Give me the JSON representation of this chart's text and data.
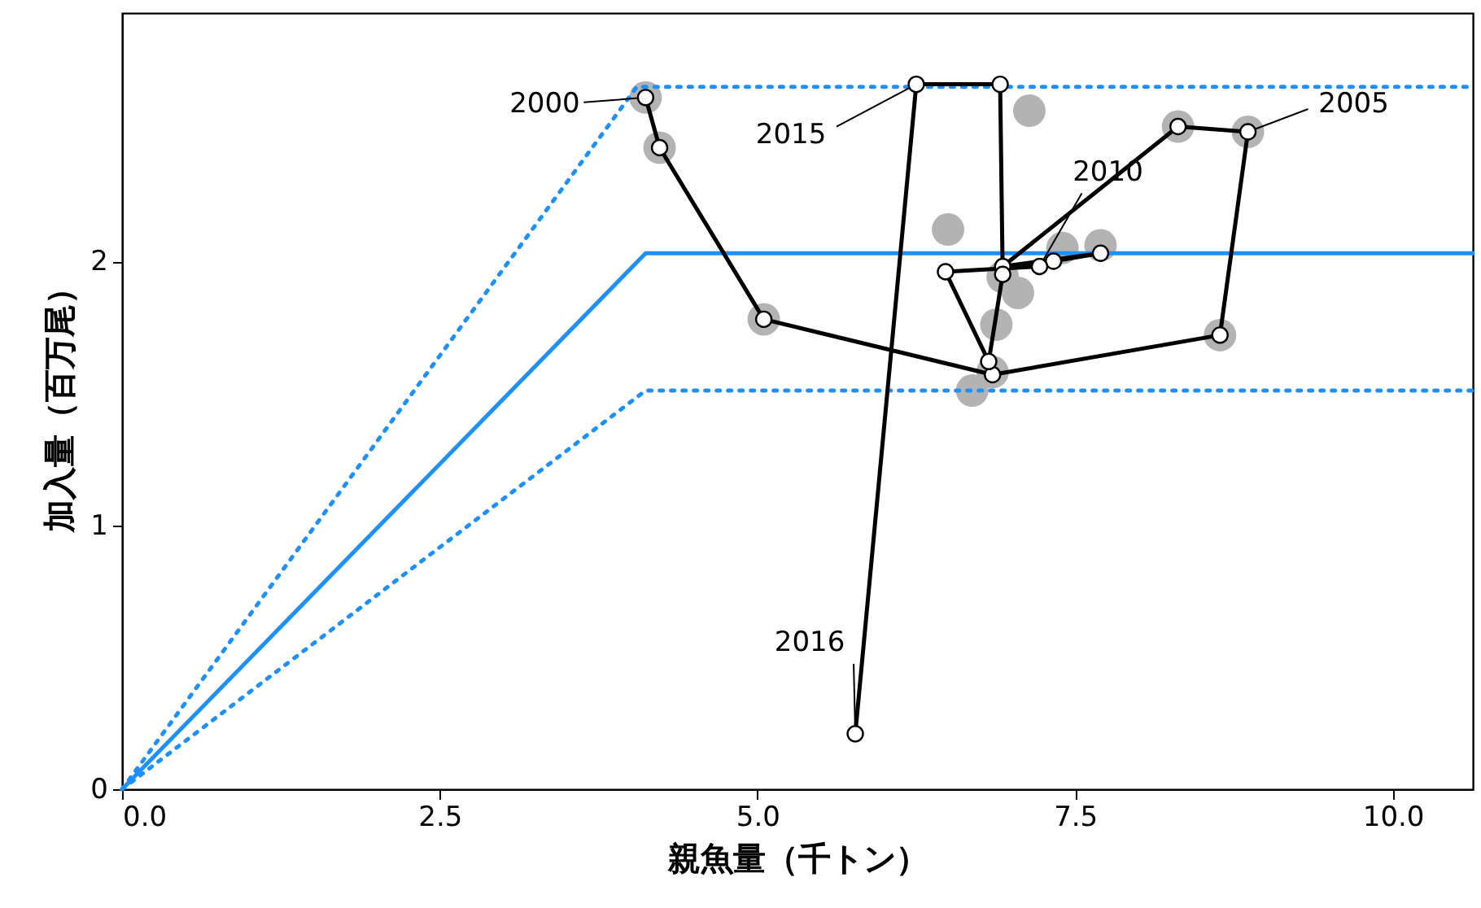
{
  "chart_data": {
    "type": "line",
    "xlabel": "親魚量（千トン）",
    "ylabel": "加入量（百万尾）",
    "xlim": [
      0,
      10.63
    ],
    "ylim": [
      0,
      2.94
    ],
    "xticks": [
      {
        "value": 0,
        "label": "0.0"
      },
      2.5,
      {
        "value": 5,
        "label": "5.0"
      },
      7.5,
      {
        "value": 10,
        "label": "10.0"
      }
    ],
    "yticks": [
      0,
      1,
      2
    ],
    "grid": false,
    "series": [
      {
        "color": "#1e90ff",
        "line_style": "solid",
        "marker": "none",
        "x": [
          0,
          4.12,
          10.63
        ],
        "values": [
          0,
          2.03,
          2.03
        ]
      },
      {
        "color": "#1e90ff",
        "line_style": "dotted",
        "marker": "none",
        "x": [
          0,
          4.05,
          10.63
        ],
        "values": [
          0,
          2.66,
          2.66
        ]
      },
      {
        "color": "#1e90ff",
        "line_style": "dotted",
        "marker": "none",
        "x": [
          0,
          4.12,
          10.63
        ],
        "values": [
          0,
          1.51,
          1.51
        ]
      },
      {
        "type": "scatter",
        "color": "#b3b3b3",
        "marker": "circle",
        "x": [
          4.12,
          4.23,
          5.05,
          6.69,
          8.64,
          8.86,
          8.31,
          7.14,
          6.5,
          6.88,
          7.05,
          6.93,
          7.7,
          7.4,
          6.85
        ],
        "values": [
          2.62,
          2.43,
          1.78,
          1.51,
          1.72,
          2.49,
          2.51,
          2.57,
          2.12,
          1.76,
          1.88,
          1.94,
          2.06,
          2.05,
          1.58
        ]
      },
      {
        "color": "#000000",
        "line_style": "solid",
        "marker": "circle",
        "x": [
          4.12,
          4.23,
          5.05,
          6.85,
          8.64,
          8.86,
          8.31,
          6.93,
          7.7,
          7.33,
          7.22,
          6.48,
          6.82,
          6.93,
          6.91,
          6.25,
          5.77
        ],
        "values": [
          2.62,
          2.43,
          1.78,
          1.57,
          1.72,
          2.49,
          2.51,
          1.98,
          2.03,
          2.0,
          1.98,
          1.96,
          1.62,
          1.95,
          2.67,
          2.67,
          0.21
        ]
      }
    ],
    "annotations": [
      {
        "text": "2000",
        "x": 4.12,
        "y": 2.62
      },
      {
        "text": "2005",
        "x": 8.86,
        "y": 2.49
      },
      {
        "text": "2010",
        "x": 7.22,
        "y": 1.98
      },
      {
        "text": "2015",
        "x": 6.25,
        "y": 2.67
      },
      {
        "text": "2016",
        "x": 5.77,
        "y": 0.21
      }
    ]
  }
}
